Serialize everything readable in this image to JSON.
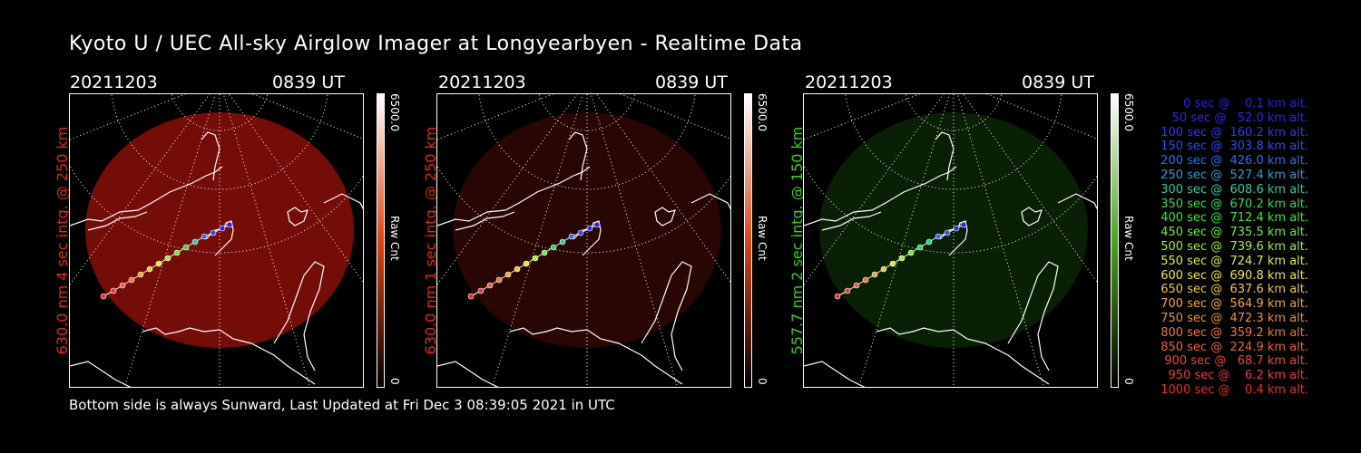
{
  "header": {
    "title": "Kyoto U / UEC All-sky Airglow Imager at Longyearbyen - Realtime Data"
  },
  "footer": {
    "text": "Bottom side is always Sunward, Last Updated at Fri Dec  3 08:39:05 2021 in UTC"
  },
  "panels": [
    {
      "date": "20211203",
      "time": "0839 UT",
      "ylabel": "630.0 nm  4 sec intg. @ 250 km",
      "label_color": "#e02a14",
      "glow_color": "#8a0f08",
      "glow_opacity": 0.85,
      "cbar_max": "6500.0",
      "cbar_min": "0",
      "cbar_unit": "Raw Cnt",
      "cbar_color": "#e8400f"
    },
    {
      "date": "20211203",
      "time": "0839 UT",
      "ylabel": "630.0 nm  1 sec intg. @ 250 km",
      "label_color": "#e02a14",
      "glow_color": "#5a0a06",
      "glow_opacity": 0.45,
      "cbar_max": "6500.0",
      "cbar_min": "0",
      "cbar_unit": "Raw Cnt",
      "cbar_color": "#e8400f"
    },
    {
      "date": "20211203",
      "time": "0839 UT",
      "ylabel": "557.7 nm  2 sec intg. @ 150 km",
      "label_color": "#35d21a",
      "glow_color": "#0f3a08",
      "glow_opacity": 0.55,
      "cbar_max": "6500.0",
      "cbar_min": "0",
      "cbar_unit": "Raw Cnt",
      "cbar_color": "#4aa81a"
    }
  ],
  "legend": [
    {
      "text": "   0 sec @    0.1 km alt.",
      "color": "#2a1ff0"
    },
    {
      "text": "  50 sec @   52.0 km alt.",
      "color": "#2a28f0"
    },
    {
      "text": " 100 sec @  160.2 km alt.",
      "color": "#2a3cf0"
    },
    {
      "text": " 150 sec @  303.8 km alt.",
      "color": "#2a50f0"
    },
    {
      "text": " 200 sec @  426.0 km alt.",
      "color": "#2a6ef0"
    },
    {
      "text": " 250 sec @  527.4 km alt.",
      "color": "#2aa0d0"
    },
    {
      "text": " 300 sec @  608.6 km alt.",
      "color": "#2ad0a0"
    },
    {
      "text": " 350 sec @  670.2 km alt.",
      "color": "#2ae050"
    },
    {
      "text": " 400 sec @  712.4 km alt.",
      "color": "#3ae83a"
    },
    {
      "text": " 450 sec @  735.5 km alt.",
      "color": "#6af03a"
    },
    {
      "text": " 500 sec @  739.6 km alt.",
      "color": "#a0f03a"
    },
    {
      "text": " 550 sec @  724.7 km alt.",
      "color": "#d8f03a"
    },
    {
      "text": " 600 sec @  690.8 km alt.",
      "color": "#f0e83a"
    },
    {
      "text": " 650 sec @  637.6 km alt.",
      "color": "#f0c83a"
    },
    {
      "text": " 700 sec @  564.9 km alt.",
      "color": "#f0a83a"
    },
    {
      "text": " 750 sec @  472.3 km alt.",
      "color": "#f0903a"
    },
    {
      "text": " 800 sec @  359.2 km alt.",
      "color": "#f0783a"
    },
    {
      "text": " 850 sec @  224.9 km alt.",
      "color": "#f0603a"
    },
    {
      "text": " 900 sec @   68.7 km alt.",
      "color": "#f0483a"
    },
    {
      "text": " 950 sec @    6.2 km alt.",
      "color": "#f0383a"
    },
    {
      "text": "1000 sec @    0.4 km alt.",
      "color": "#f02a2a"
    }
  ]
}
